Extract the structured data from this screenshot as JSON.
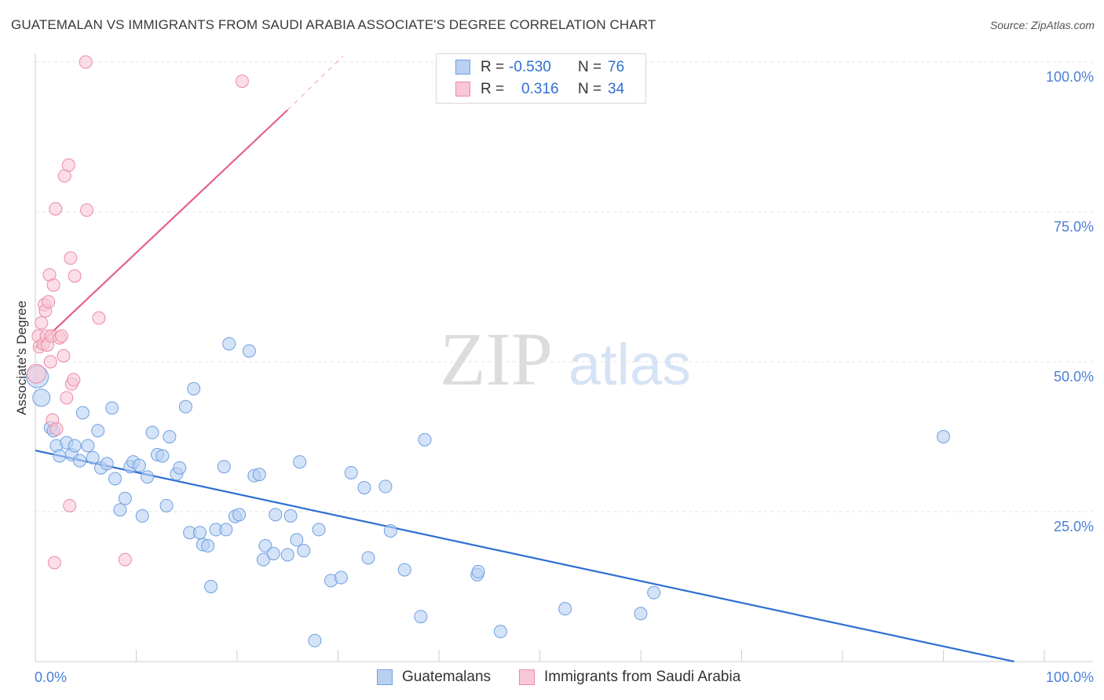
{
  "header": {
    "title": "GUATEMALAN VS IMMIGRANTS FROM SAUDI ARABIA ASSOCIATE'S DEGREE CORRELATION CHART",
    "source": "Source: ZipAtlas.com"
  },
  "watermark": {
    "zip": "ZIP",
    "atlas": "atlas"
  },
  "legend": {
    "rows": [
      {
        "r_label": "R =",
        "r_value": "-0.530",
        "n_label": "N =",
        "n_value": "76"
      },
      {
        "r_label": "R =",
        "r_value": "0.316",
        "n_label": "N =",
        "n_value": "34"
      }
    ],
    "bottom": [
      "Guatemalans",
      "Immigrants from Saudi Arabia"
    ]
  },
  "colors": {
    "blue_fill": "#b8d1f3",
    "blue_stroke": "#6f9fe0",
    "blue_line": "#2e6fd1",
    "pink_fill": "#f8c8d6",
    "pink_stroke": "#ec8aa8",
    "pink_line": "#e5608a",
    "tick_blue": "#4a7fd6"
  },
  "chart_data": {
    "type": "scatter",
    "title": "GUATEMALAN VS IMMIGRANTS FROM SAUDI ARABIA ASSOCIATE'S DEGREE CORRELATION CHART",
    "xlabel": "",
    "ylabel": "Associate's Degree",
    "xlim": [
      0,
      100
    ],
    "ylim": [
      0,
      100
    ],
    "x_tick_labels": [
      "0.0%",
      "100.0%"
    ],
    "y_tick_labels": [
      "100.0%",
      "75.0%",
      "50.0%",
      "25.0%"
    ],
    "y_ticks": [
      100,
      75,
      50,
      25
    ],
    "series": [
      {
        "name": "Guatemalans",
        "color": "blue",
        "R": -0.53,
        "N": 76,
        "trend": {
          "x": [
            0,
            97
          ],
          "y": [
            35.2,
            0
          ]
        },
        "points": [
          [
            0.2,
            47.5,
            14
          ],
          [
            0.6,
            44,
            11
          ],
          [
            1.5,
            39,
            8
          ],
          [
            1.8,
            38.5,
            8
          ],
          [
            2.1,
            36,
            8
          ],
          [
            2.4,
            34.3,
            8
          ],
          [
            3.1,
            36.5,
            8
          ],
          [
            3.6,
            34.5,
            8
          ],
          [
            3.9,
            36,
            8
          ],
          [
            4.4,
            33.5,
            8
          ],
          [
            4.7,
            41.5,
            8
          ],
          [
            5.2,
            36,
            8
          ],
          [
            5.7,
            34,
            8
          ],
          [
            6.2,
            38.5,
            8
          ],
          [
            6.5,
            32.3,
            8
          ],
          [
            7.1,
            33,
            8
          ],
          [
            7.6,
            42.3,
            8
          ],
          [
            7.9,
            30.5,
            8
          ],
          [
            8.4,
            25.3,
            8
          ],
          [
            8.9,
            27.2,
            8
          ],
          [
            9.4,
            32.5,
            8
          ],
          [
            9.7,
            33.3,
            8
          ],
          [
            10.3,
            32.7,
            8
          ],
          [
            10.6,
            24.3,
            8
          ],
          [
            11.1,
            30.8,
            8
          ],
          [
            11.6,
            38.2,
            8
          ],
          [
            12.1,
            34.5,
            8
          ],
          [
            12.6,
            34.3,
            8
          ],
          [
            13.0,
            26.0,
            8
          ],
          [
            13.3,
            37.5,
            8
          ],
          [
            14.0,
            31.3,
            8
          ],
          [
            14.3,
            32.3,
            8
          ],
          [
            14.9,
            42.5,
            8
          ],
          [
            15.3,
            21.5,
            8
          ],
          [
            15.7,
            45.5,
            8
          ],
          [
            16.3,
            21.5,
            8
          ],
          [
            16.6,
            19.5,
            8
          ],
          [
            17.1,
            19.3,
            8
          ],
          [
            17.4,
            12.5,
            8
          ],
          [
            17.9,
            22.0,
            8
          ],
          [
            18.7,
            32.5,
            8
          ],
          [
            18.9,
            22.0,
            8
          ],
          [
            19.2,
            53.0,
            8
          ],
          [
            19.8,
            24.2,
            8
          ],
          [
            20.2,
            24.5,
            8
          ],
          [
            21.2,
            51.8,
            8
          ],
          [
            21.7,
            31.0,
            8
          ],
          [
            22.2,
            31.2,
            8
          ],
          [
            22.6,
            17.0,
            8
          ],
          [
            22.8,
            19.3,
            8
          ],
          [
            23.6,
            18.0,
            8
          ],
          [
            23.8,
            24.5,
            8
          ],
          [
            25.0,
            17.8,
            8
          ],
          [
            25.3,
            24.3,
            8
          ],
          [
            25.9,
            20.3,
            8
          ],
          [
            26.2,
            33.3,
            8
          ],
          [
            26.6,
            18.5,
            8
          ],
          [
            27.7,
            3.5,
            8
          ],
          [
            28.1,
            22.0,
            8
          ],
          [
            29.3,
            13.5,
            8
          ],
          [
            30.3,
            14.0,
            8
          ],
          [
            31.3,
            31.5,
            8
          ],
          [
            32.6,
            29.0,
            8
          ],
          [
            33.0,
            17.3,
            8
          ],
          [
            34.7,
            29.2,
            8
          ],
          [
            35.2,
            21.8,
            8
          ],
          [
            36.6,
            15.3,
            8
          ],
          [
            38.2,
            7.5,
            8
          ],
          [
            38.6,
            37.0,
            8
          ],
          [
            43.8,
            14.5,
            8
          ],
          [
            43.9,
            15.0,
            8
          ],
          [
            46.1,
            5.0,
            8
          ],
          [
            52.5,
            8.8,
            8
          ],
          [
            60.0,
            8.0,
            8
          ],
          [
            61.3,
            11.5,
            8
          ],
          [
            90.0,
            37.5,
            8
          ]
        ]
      },
      {
        "name": "Immigrants from Saudi Arabia",
        "color": "pink",
        "R": 0.316,
        "N": 34,
        "trend": {
          "x": [
            0,
            25
          ],
          "y": [
            52.3,
            92
          ],
          "dash_to": {
            "x": 30.5,
            "y": 101
          }
        },
        "points": [
          [
            0.1,
            48,
            12
          ],
          [
            0.3,
            54.3,
            8
          ],
          [
            0.4,
            52.5,
            8
          ],
          [
            0.6,
            56.5,
            8
          ],
          [
            0.8,
            53,
            8
          ],
          [
            0.9,
            59.5,
            8
          ],
          [
            1.0,
            58.5,
            8
          ],
          [
            1.1,
            54.3,
            8
          ],
          [
            1.2,
            52.8,
            8
          ],
          [
            1.3,
            60,
            8
          ],
          [
            1.4,
            64.5,
            8
          ],
          [
            1.5,
            50,
            8
          ],
          [
            1.6,
            54.3,
            8
          ],
          [
            1.7,
            40.3,
            8
          ],
          [
            1.8,
            62.8,
            8
          ],
          [
            1.9,
            16.5,
            8
          ],
          [
            2.0,
            75.5,
            8
          ],
          [
            2.1,
            38.8,
            8
          ],
          [
            2.4,
            54,
            8
          ],
          [
            2.6,
            54.3,
            8
          ],
          [
            2.8,
            51,
            8
          ],
          [
            2.9,
            81,
            8
          ],
          [
            3.1,
            44,
            8
          ],
          [
            3.3,
            82.8,
            8
          ],
          [
            3.4,
            26,
            8
          ],
          [
            3.5,
            67.3,
            8
          ],
          [
            3.6,
            46.3,
            8
          ],
          [
            3.8,
            47,
            8
          ],
          [
            3.9,
            64.3,
            8
          ],
          [
            5.0,
            100,
            8
          ],
          [
            5.1,
            75.3,
            8
          ],
          [
            6.3,
            57.3,
            8
          ],
          [
            8.9,
            17.0,
            8
          ],
          [
            20.5,
            96.8,
            8
          ]
        ]
      }
    ]
  }
}
